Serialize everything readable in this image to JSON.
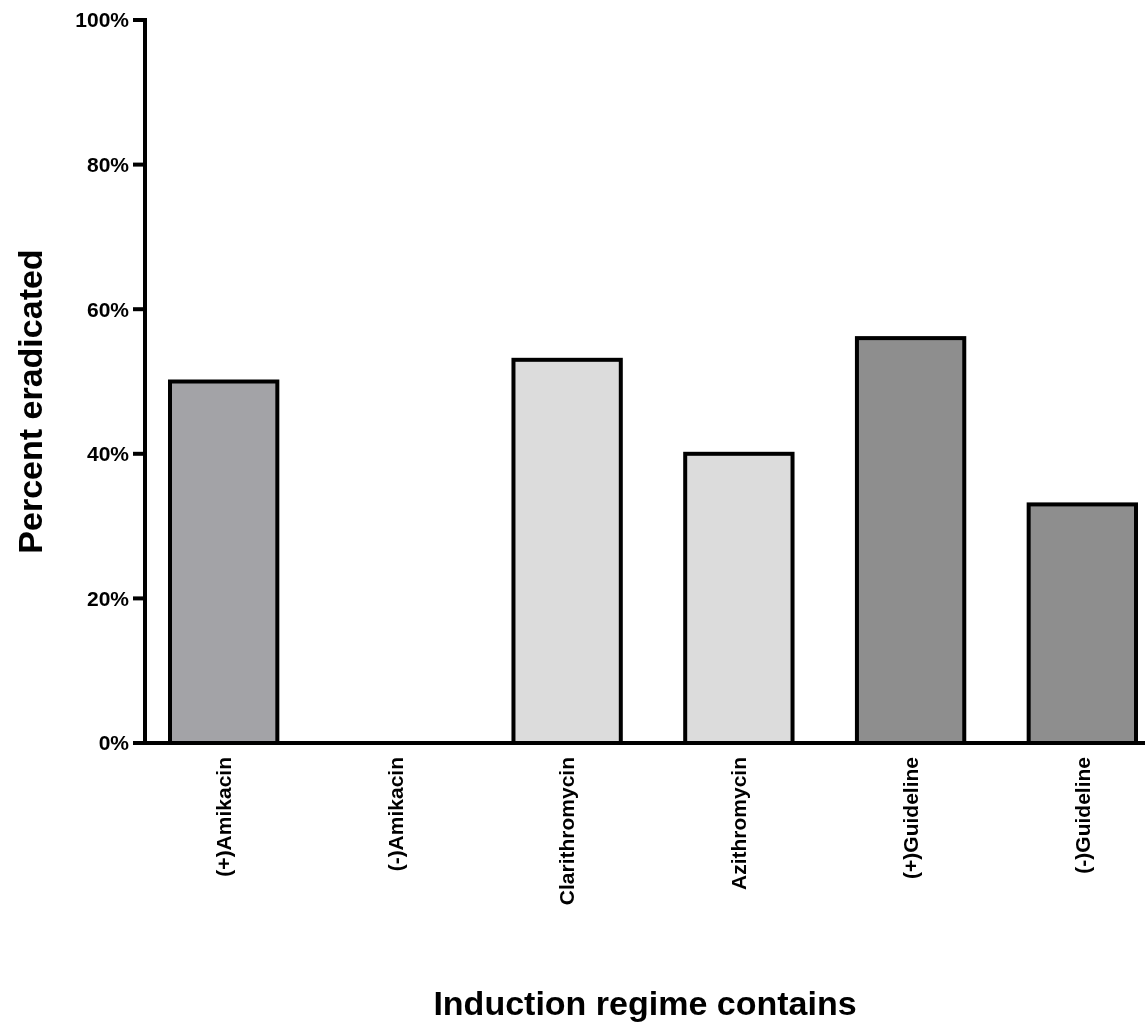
{
  "chart_data": {
    "type": "bar",
    "xlabel": "Induction regime contains",
    "ylabel": "Percent eradicated",
    "categories": [
      "(+)Amikacin",
      "(-)Amikacin",
      "Clarithromycin",
      "Azithromycin",
      "(+)Guideline",
      "(-)Guideline"
    ],
    "values": [
      50,
      0,
      53,
      40,
      56,
      33
    ],
    "colors": [
      "#a3a3a7",
      "#ffffff",
      "#dcdcdc",
      "#dcdcdc",
      "#8e8e8e",
      "#8e8e8e"
    ],
    "ylim": [
      0,
      100
    ],
    "yticks": [
      {
        "value": 0,
        "label": "0%"
      },
      {
        "value": 20,
        "label": "20%"
      },
      {
        "value": 40,
        "label": "40%"
      },
      {
        "value": 60,
        "label": "60%"
      },
      {
        "value": 80,
        "label": "80%"
      },
      {
        "value": 100,
        "label": "100%"
      }
    ],
    "grid": false
  }
}
